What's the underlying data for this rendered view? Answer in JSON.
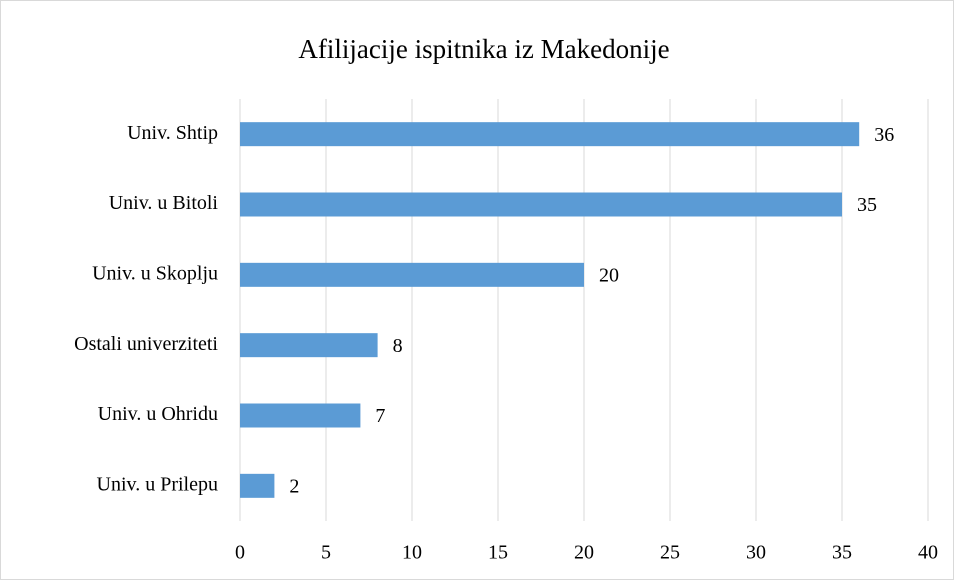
{
  "chart_data": {
    "type": "bar",
    "title": "Afilijacije ispitnika iz Makedonije",
    "categories": [
      "Univ. Shtip",
      "Univ. u Bitoli",
      "Univ. u Skoplju",
      "Ostali univerziteti",
      "Univ. u Ohridu",
      "Univ. u Prilepu"
    ],
    "values": [
      36,
      35,
      20,
      8,
      7,
      2
    ],
    "color": "#5b9bd5",
    "xlim": [
      0,
      40
    ],
    "xticks": [
      0,
      5,
      10,
      15,
      20,
      25,
      30,
      35,
      40
    ],
    "grid": true
  }
}
